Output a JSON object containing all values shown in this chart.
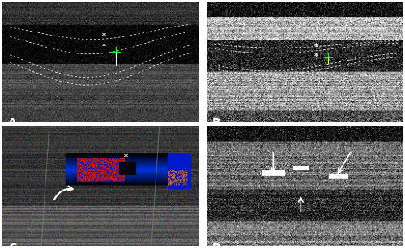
{
  "figure_bg": "#ffffff",
  "panel_bg_color": "#000000",
  "panel_labels": [
    "A",
    "B",
    "C",
    "D"
  ],
  "label_color": "#ffffff",
  "label_fontsize": 10,
  "border_color": "#cccccc",
  "border_linewidth": 1.0,
  "figsize": [
    5.0,
    3.07
  ],
  "dpi": 100,
  "nrows": 2,
  "ncols": 2,
  "hspace": 0.04,
  "wspace": 0.04,
  "outer_border_color": "#aaaaaa",
  "outer_border_lw": 1.5
}
